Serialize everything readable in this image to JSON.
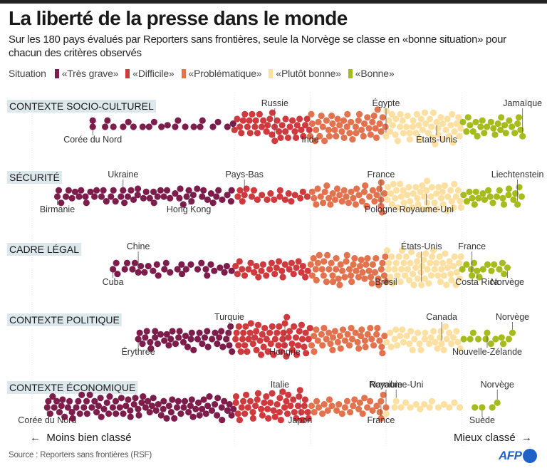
{
  "header": {
    "title": "La liberté de la presse dans le monde",
    "subtitle": "Sur les 180 pays évalués par Reporters sans frontières, seule la Norvège se classe en «bonne situation» pour chacun des critères observés"
  },
  "legend": {
    "label": "Situation",
    "items": [
      {
        "label": "«Très grave»",
        "color": "#7d1d4b"
      },
      {
        "label": "«Difficile»",
        "color": "#cf3a3f"
      },
      {
        "label": "«Problématique»",
        "color": "#e2734e"
      },
      {
        "label": "«Plutôt bonne»",
        "color": "#fce0a2"
      },
      {
        "label": "«Bonne»",
        "color": "#a5bc1c"
      }
    ]
  },
  "footer": {
    "left_arrow": "←",
    "left_label": "Moins bien classé",
    "right_label": "Mieux classé",
    "right_arrow": "→",
    "source": "Source : Reporters sans frontières (RSF)",
    "logo": "AFP"
  },
  "chart_data": {
    "type": "scatter",
    "subtype": "beeswarm",
    "title": "La liberté de la presse dans le monde",
    "x_axis": {
      "label_left": "Moins bien classé",
      "label_right": "Mieux classé",
      "range": [
        0,
        100
      ],
      "unit": "score"
    },
    "categories": [
      "«Très grave»",
      "«Difficile»",
      "«Problématique»",
      "«Plutôt bonne»",
      "«Bonne»"
    ],
    "category_thresholds": [
      0,
      40,
      55,
      70,
      85,
      100
    ],
    "countries_per_row": 180,
    "rows": [
      {
        "name": "CONTEXTE SOCIO-CULTUREL",
        "counts": [
          22,
          40,
          45,
          48,
          25
        ],
        "score_span": [
          12,
          97
        ],
        "annotations": [
          {
            "label": "Corée du Nord",
            "score": 12,
            "category": "«Très grave»"
          },
          {
            "label": "Russie",
            "score": 48,
            "category": "«Difficile»"
          },
          {
            "label": "Inde",
            "score": 55,
            "category": "«Problématique»"
          },
          {
            "label": "Égypte",
            "score": 70,
            "category": "«Plutôt bonne»"
          },
          {
            "label": "États-Unis",
            "score": 80,
            "category": "«Plutôt bonne»"
          },
          {
            "label": "Jamaïque",
            "score": 97,
            "category": "«Bonne»"
          }
        ]
      },
      {
        "name": "SÉCURITÉ",
        "counts": [
          55,
          20,
          35,
          48,
          22
        ],
        "score_span": [
          5,
          97
        ],
        "annotations": [
          {
            "label": "Birmanie",
            "score": 5,
            "category": "«Très grave»"
          },
          {
            "label": "Ukraine",
            "score": 18,
            "category": "«Très grave»"
          },
          {
            "label": "Hong Kong",
            "score": 31,
            "category": "«Très grave»"
          },
          {
            "label": "Pays-Bas",
            "score": 42,
            "category": "«Difficile»"
          },
          {
            "label": "Pologne",
            "score": 69,
            "category": "«Problématique»"
          },
          {
            "label": "France",
            "score": 69,
            "category": "«Problématique»"
          },
          {
            "label": "Royaume-Uni",
            "score": 78,
            "category": "«Plutôt bonne»"
          },
          {
            "label": "Liechtenstein",
            "score": 96,
            "category": "«Bonne»"
          }
        ]
      },
      {
        "name": "CADRE LÉGAL",
        "counts": [
          30,
          30,
          50,
          58,
          12
        ],
        "score_span": [
          16,
          94
        ],
        "annotations": [
          {
            "label": "Cuba",
            "score": 16,
            "category": "«Très grave»"
          },
          {
            "label": "Chine",
            "score": 21,
            "category": "«Très grave»"
          },
          {
            "label": "Brésil",
            "score": 70,
            "category": "«Problématique»"
          },
          {
            "label": "États-Unis",
            "score": 77,
            "category": "«Plutôt bonne»"
          },
          {
            "label": "Costa Rica",
            "score": 88,
            "category": "«Bonne»"
          },
          {
            "label": "France",
            "score": 87,
            "category": "«Bonne»"
          },
          {
            "label": "Norvège",
            "score": 94,
            "category": "«Bonne»"
          }
        ]
      },
      {
        "name": "CONTEXTE POLITIQUE",
        "counts": [
          40,
          55,
          40,
          35,
          10
        ],
        "score_span": [
          21,
          95
        ],
        "annotations": [
          {
            "label": "Érythrée",
            "score": 21,
            "category": "«Très grave»"
          },
          {
            "label": "Turquie",
            "score": 39,
            "category": "«Très grave»"
          },
          {
            "label": "Hongrie",
            "score": 50,
            "category": "«Difficile»"
          },
          {
            "label": "Canada",
            "score": 81,
            "category": "«Plutôt bonne»"
          },
          {
            "label": "Nouvelle-Zélande",
            "score": 90,
            "category": "«Bonne»"
          },
          {
            "label": "Norvège",
            "score": 95,
            "category": "«Bonne»"
          }
        ]
      },
      {
        "name": "CONTEXTE ÉCONOMIQUE",
        "counts": [
          90,
          45,
          28,
          15,
          2
        ],
        "score_span": [
          3,
          93
        ],
        "annotations": [
          {
            "label": "Corée du Nord",
            "score": 3,
            "category": "«Très grave»"
          },
          {
            "label": "Italie",
            "score": 49,
            "category": "«Difficile»"
          },
          {
            "label": "Japon",
            "score": 53,
            "category": "«Difficile»"
          },
          {
            "label": "Namibie",
            "score": 70,
            "category": "«Problématique»"
          },
          {
            "label": "France",
            "score": 69,
            "category": "«Problématique»"
          },
          {
            "label": "Royaume-Uni",
            "score": 72,
            "category": "«Plutôt bonne»"
          },
          {
            "label": "Suède",
            "score": 89,
            "category": "«Bonne»"
          },
          {
            "label": "Norvège",
            "score": 92,
            "category": "«Bonne»"
          }
        ]
      }
    ]
  }
}
